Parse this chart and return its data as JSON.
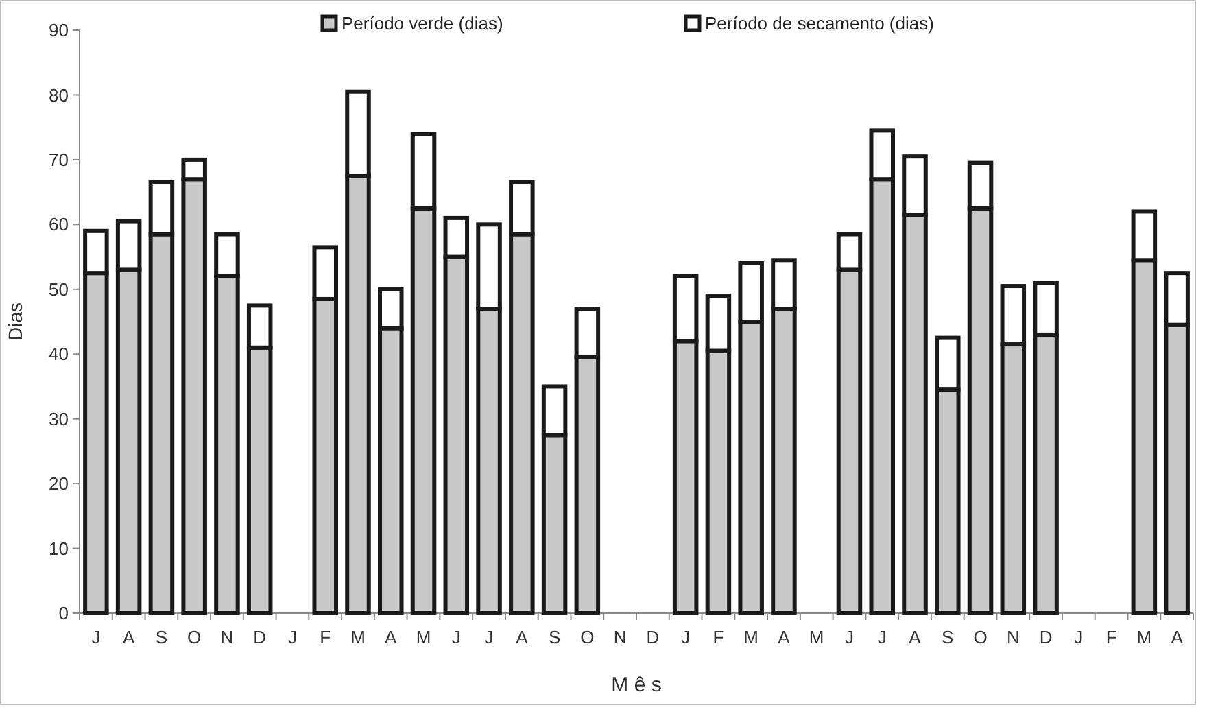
{
  "chart_data": {
    "type": "bar",
    "stacked": true,
    "xlabel": "M ê s",
    "ylabel": "Dias",
    "legend": "top",
    "grid": false,
    "categories": [
      "J",
      "A",
      "S",
      "O",
      "N",
      "D",
      "J",
      "F",
      "M",
      "A",
      "M",
      "J",
      "J",
      "A",
      "S",
      "O",
      "N",
      "D",
      "J",
      "F",
      "M",
      "A",
      "M",
      "J",
      "J",
      "A",
      "S",
      "O",
      "N",
      "D",
      "J",
      "F",
      "M",
      "A"
    ],
    "series": [
      {
        "name": "Período verde (dias)",
        "color": "#c8c8c8",
        "values": [
          52.5,
          53,
          58.5,
          67,
          52,
          41,
          null,
          48.5,
          67.5,
          44,
          62.5,
          55,
          47,
          58.5,
          27.5,
          39.5,
          null,
          null,
          42,
          40.5,
          45,
          47,
          null,
          53,
          67,
          61.5,
          34.5,
          62.5,
          41.5,
          43,
          null,
          null,
          54.5,
          44.5
        ]
      },
      {
        "name": "Período de secamento (dias)",
        "color": "#ffffff",
        "values": [
          6.5,
          7.5,
          8,
          3,
          6.5,
          6.5,
          null,
          8,
          13,
          6,
          11.5,
          6,
          13,
          8,
          7.5,
          7.5,
          null,
          null,
          10,
          8.5,
          9,
          7.5,
          null,
          5.5,
          7.5,
          9,
          8,
          7,
          9,
          8,
          null,
          null,
          7.5,
          8
        ]
      }
    ],
    "ylim": [
      0,
      90
    ],
    "yticks": [
      0,
      10,
      20,
      30,
      40,
      50,
      60,
      70,
      80,
      90
    ]
  }
}
